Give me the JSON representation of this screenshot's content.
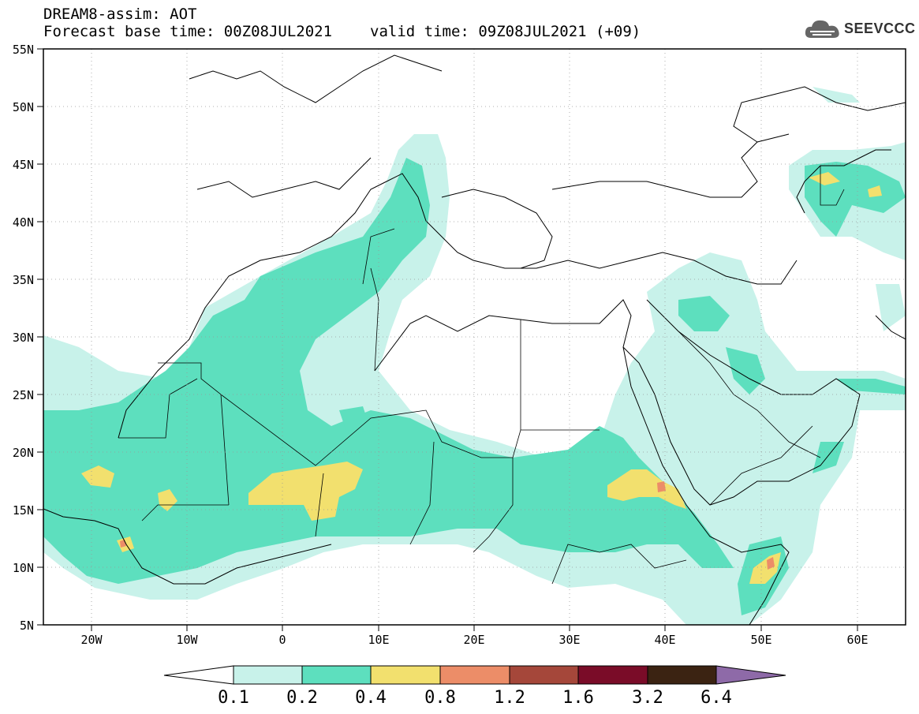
{
  "header": {
    "line1": "DREAM8-assim: AOT",
    "base": "Forecast base time: 00Z08JUL2021",
    "valid": "valid time: 09Z08JUL2021 (+09)"
  },
  "logo": {
    "text": "SEEVCCC",
    "icon": "cloud-icon"
  },
  "map": {
    "extent": {
      "lon_min": -25,
      "lon_max": 65,
      "lat_min": 5,
      "lat_max": 55
    },
    "lat_labels": [
      "55N",
      "50N",
      "45N",
      "40N",
      "35N",
      "30N",
      "25N",
      "20N",
      "15N",
      "10N",
      "5N"
    ],
    "lon_labels": [
      "20W",
      "10W",
      "0",
      "10E",
      "20E",
      "30E",
      "40E",
      "50E",
      "60E"
    ]
  },
  "colorbar": {
    "labels": [
      "0.1",
      "0.2",
      "0.4",
      "0.8",
      "1.2",
      "1.6",
      "3.2",
      "6.4"
    ],
    "colors": [
      "#c8f2ea",
      "#5ddfbe",
      "#f2e06e",
      "#ec8d68",
      "#a5473a",
      "#7a0c28",
      "#3b2312",
      "#8e6aa8"
    ],
    "under_color": "#ffffff"
  },
  "colors": {
    "level1": "#c8f2ea",
    "level2": "#5ddfbe",
    "level3": "#f2e06e",
    "level4": "#ec8d68"
  }
}
